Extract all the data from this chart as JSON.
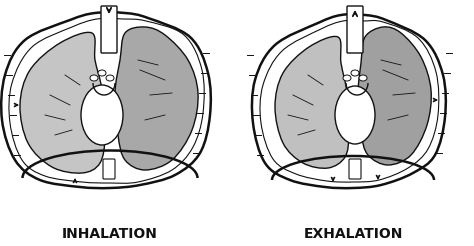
{
  "label_inhalation": "INHALATION",
  "label_exhalation": "EXHALATION",
  "bg_color": "#ffffff",
  "label_fontsize": 10,
  "label_color": "#111111",
  "fig_width": 4.74,
  "fig_height": 2.46,
  "dpi": 100,
  "lung_gray": "#b8b8b8",
  "lung_gray2": "#c8c8c8",
  "outline_color": "#111111",
  "white": "#ffffff",
  "lw_main": 1.8,
  "lw_thin": 1.0
}
